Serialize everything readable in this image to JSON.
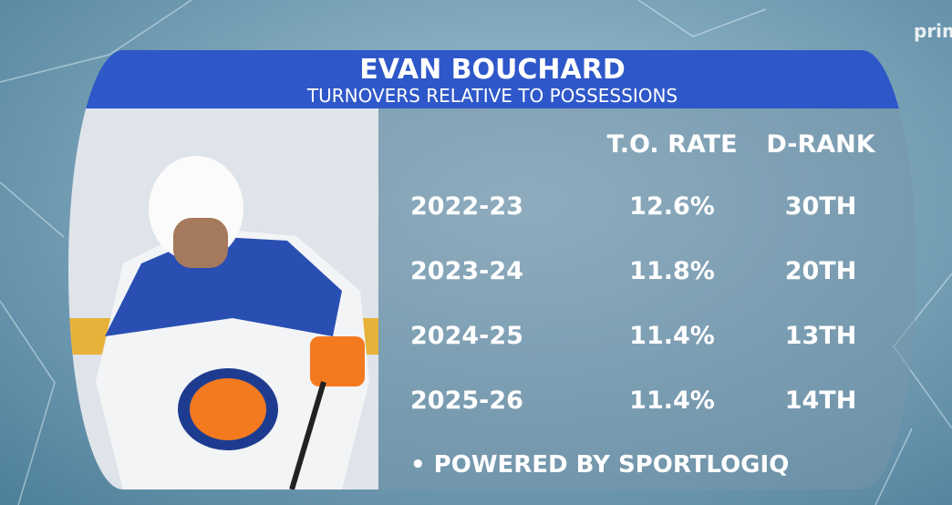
{
  "header": {
    "title": "EVAN BOUCHARD",
    "subtitle": "TURNOVERS RELATIVE TO POSSESSIONS"
  },
  "table": {
    "columns": [
      "T.O. RATE",
      "D-RANK"
    ],
    "rows": [
      [
        "2022-23",
        "12.6%",
        "30TH"
      ],
      [
        "2023-24",
        "11.8%",
        "20TH"
      ],
      [
        "2024-25",
        "11.4%",
        "13TH"
      ],
      [
        "2025-26",
        "11.4%",
        "14TH"
      ]
    ]
  },
  "footer": "POWERED BY SPORTLOGIQ",
  "logo": "prime"
}
